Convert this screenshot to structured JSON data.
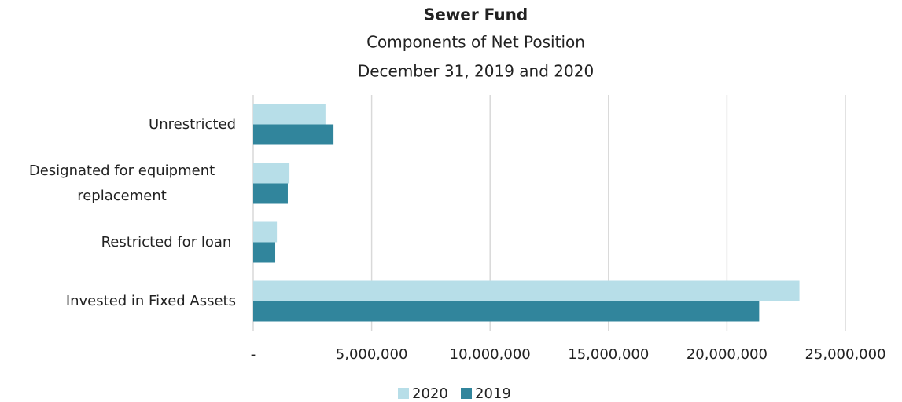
{
  "chart_data": {
    "type": "bar",
    "orientation": "horizontal",
    "title": "Sewer Fund",
    "subtitle": [
      "Components of Net Position",
      "December 31, 2019 and 2020"
    ],
    "categories": [
      "Unrestricted",
      "Designated for equipment replacement",
      "Restricted for loan ",
      "Invested in Fixed Assets"
    ],
    "series": [
      {
        "name": "2020",
        "color": "#b7dee8",
        "values": [
          3050000,
          1530000,
          1000000,
          23060000
        ]
      },
      {
        "name": "2019",
        "color": "#31859c",
        "values": [
          3390000,
          1460000,
          930000,
          21360000
        ]
      }
    ],
    "xlim": [
      0,
      25000000
    ],
    "xticks": [
      {
        "value": 0,
        "label": "-"
      },
      {
        "value": 5000000,
        "label": "5,000,000"
      },
      {
        "value": 10000000,
        "label": "10,000,000"
      },
      {
        "value": 15000000,
        "label": "15,000,000"
      },
      {
        "value": 20000000,
        "label": "20,000,000"
      },
      {
        "value": 25000000,
        "label": "25,000,000"
      }
    ],
    "grid": true,
    "legend": "bottom"
  }
}
